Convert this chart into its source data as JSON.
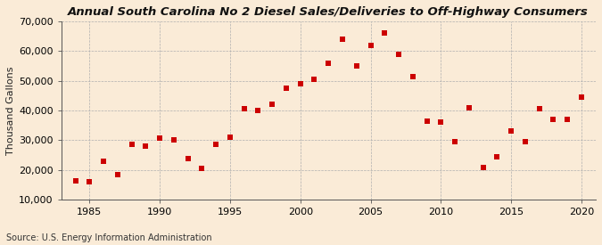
{
  "title": "Annual South Carolina No 2 Diesel Sales/Deliveries to Off-Highway Consumers",
  "ylabel": "Thousand Gallons",
  "source": "Source: U.S. Energy Information Administration",
  "background_color": "#faebd7",
  "marker_color": "#cc0000",
  "xlim": [
    1983,
    2021
  ],
  "ylim": [
    10000,
    70000
  ],
  "xticks": [
    1985,
    1990,
    1995,
    2000,
    2005,
    2010,
    2015,
    2020
  ],
  "yticks": [
    10000,
    20000,
    30000,
    40000,
    50000,
    60000,
    70000
  ],
  "years": [
    1984,
    1985,
    1986,
    1987,
    1988,
    1989,
    1990,
    1991,
    1992,
    1993,
    1994,
    1995,
    1996,
    1997,
    1998,
    1999,
    2000,
    2001,
    2002,
    2003,
    2004,
    2005,
    2006,
    2007,
    2008,
    2009,
    2010,
    2011,
    2012,
    2013,
    2014,
    2015,
    2016,
    2017,
    2018,
    2019,
    2020
  ],
  "values": [
    16500,
    16200,
    23000,
    18500,
    28500,
    28000,
    30800,
    30200,
    24000,
    20500,
    28500,
    31000,
    40500,
    40000,
    42000,
    47500,
    49000,
    50500,
    56000,
    64000,
    55000,
    62000,
    66000,
    59000,
    51500,
    36500,
    36000,
    29500,
    41000,
    21000,
    24500,
    33000,
    29500,
    40500,
    37000,
    37000,
    44500
  ],
  "title_fontsize": 9.5,
  "ylabel_fontsize": 8,
  "tick_fontsize": 8,
  "source_fontsize": 7
}
